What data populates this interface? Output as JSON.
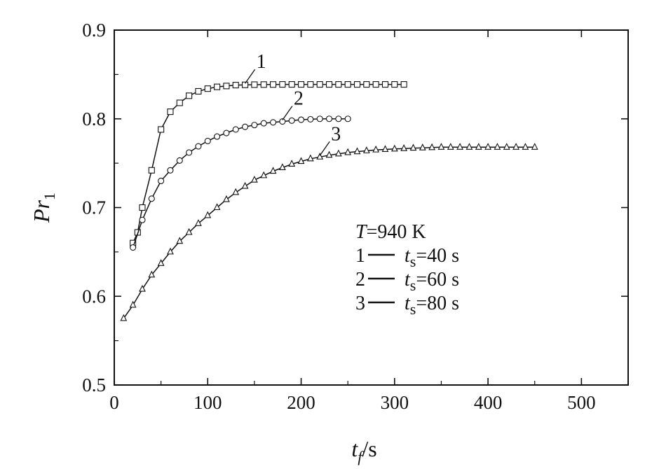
{
  "chart_data": {
    "type": "line",
    "title": "",
    "xlabel": {
      "main": "t",
      "sub": "f",
      "unit": "/s"
    },
    "ylabel": {
      "main": "Pr",
      "sub": "1"
    },
    "xlim": [
      0,
      550
    ],
    "ylim": [
      0.5,
      0.9
    ],
    "xticks": [
      0,
      100,
      200,
      300,
      400,
      500
    ],
    "yticks": [
      0.5,
      0.6,
      0.7,
      0.8,
      0.9
    ],
    "xtick_labels": [
      "0",
      "100",
      "200",
      "300",
      "400",
      "500"
    ],
    "ytick_labels": [
      "0.5",
      "0.6",
      "0.7",
      "0.8",
      "0.9"
    ],
    "grid": false,
    "legend": {
      "placement": "lower-right",
      "condition": {
        "var": "T",
        "value": "=940 K"
      },
      "entries": [
        {
          "num": "1",
          "var": "t",
          "sub": "s",
          "value": "=40 s"
        },
        {
          "num": "2",
          "var": "t",
          "sub": "s",
          "value": "=60 s"
        },
        {
          "num": "3",
          "var": "t",
          "sub": "s",
          "value": "=80 s"
        }
      ]
    },
    "series": [
      {
        "label": "1",
        "marker": "square",
        "x": [
          20,
          25,
          30,
          40,
          50,
          60,
          70,
          80,
          90,
          100,
          110,
          120,
          130,
          140,
          150,
          160,
          170,
          180,
          190,
          200,
          210,
          220,
          230,
          240,
          250,
          260,
          270,
          280,
          290,
          300,
          310
        ],
        "y": [
          0.66,
          0.672,
          0.7,
          0.742,
          0.788,
          0.808,
          0.818,
          0.826,
          0.831,
          0.834,
          0.836,
          0.837,
          0.838,
          0.8383,
          0.8385,
          0.8386,
          0.8387,
          0.8388,
          0.8388,
          0.8388,
          0.8388,
          0.8388,
          0.8388,
          0.8388,
          0.8388,
          0.8388,
          0.8388,
          0.8388,
          0.8388,
          0.8388,
          0.8388
        ]
      },
      {
        "label": "2",
        "marker": "circle",
        "x": [
          20,
          30,
          40,
          50,
          60,
          70,
          80,
          90,
          100,
          110,
          120,
          130,
          140,
          150,
          160,
          170,
          180,
          190,
          200,
          210,
          220,
          230,
          240,
          250
        ],
        "y": [
          0.655,
          0.686,
          0.71,
          0.73,
          0.742,
          0.753,
          0.762,
          0.769,
          0.775,
          0.78,
          0.784,
          0.788,
          0.791,
          0.793,
          0.795,
          0.796,
          0.797,
          0.798,
          0.799,
          0.7995,
          0.8,
          0.8,
          0.8,
          0.8
        ]
      },
      {
        "label": "3",
        "marker": "triangle",
        "x": [
          10,
          20,
          30,
          40,
          50,
          60,
          70,
          80,
          90,
          100,
          110,
          120,
          130,
          140,
          150,
          160,
          170,
          180,
          190,
          200,
          210,
          220,
          230,
          240,
          250,
          260,
          270,
          280,
          290,
          300,
          310,
          320,
          330,
          340,
          350,
          360,
          370,
          380,
          390,
          400,
          410,
          420,
          430,
          440,
          450
        ],
        "y": [
          0.575,
          0.59,
          0.608,
          0.624,
          0.637,
          0.65,
          0.662,
          0.672,
          0.682,
          0.691,
          0.7,
          0.709,
          0.717,
          0.724,
          0.731,
          0.736,
          0.741,
          0.745,
          0.749,
          0.752,
          0.755,
          0.757,
          0.759,
          0.7605,
          0.762,
          0.763,
          0.764,
          0.765,
          0.7655,
          0.766,
          0.7665,
          0.767,
          0.7673,
          0.7676,
          0.768,
          0.768,
          0.768,
          0.768,
          0.768,
          0.768,
          0.768,
          0.768,
          0.768,
          0.768,
          0.768
        ]
      }
    ],
    "curve_labels": [
      {
        "text": "1",
        "series": 0,
        "at_x": 140
      },
      {
        "text": "2",
        "series": 1,
        "at_x": 180
      },
      {
        "text": "3",
        "series": 2,
        "at_x": 220
      }
    ]
  }
}
